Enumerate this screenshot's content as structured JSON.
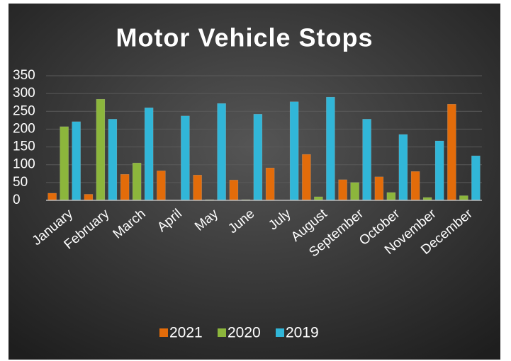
{
  "chart_data": {
    "type": "bar",
    "title": "Motor Vehicle Stops",
    "categories": [
      "January",
      "February",
      "March",
      "April",
      "May",
      "June",
      "July",
      "August",
      "September",
      "October",
      "November",
      "December"
    ],
    "series": [
      {
        "name": "2021",
        "color": "#e36c0a",
        "values": [
          20,
          17,
          73,
          83,
          71,
          57,
          91,
          129,
          58,
          66,
          81,
          270
        ]
      },
      {
        "name": "2020",
        "color": "#8cb63c",
        "values": [
          207,
          284,
          105,
          0,
          2,
          2,
          0,
          10,
          50,
          22,
          8,
          13
        ]
      },
      {
        "name": "2019",
        "color": "#31b6d8",
        "values": [
          221,
          228,
          260,
          237,
          272,
          242,
          277,
          290,
          228,
          185,
          167,
          125
        ]
      }
    ],
    "ylim": [
      0,
      350
    ],
    "yticks": [
      0,
      50,
      100,
      150,
      200,
      250,
      300,
      350
    ],
    "grid": true,
    "legend": "bottom"
  }
}
